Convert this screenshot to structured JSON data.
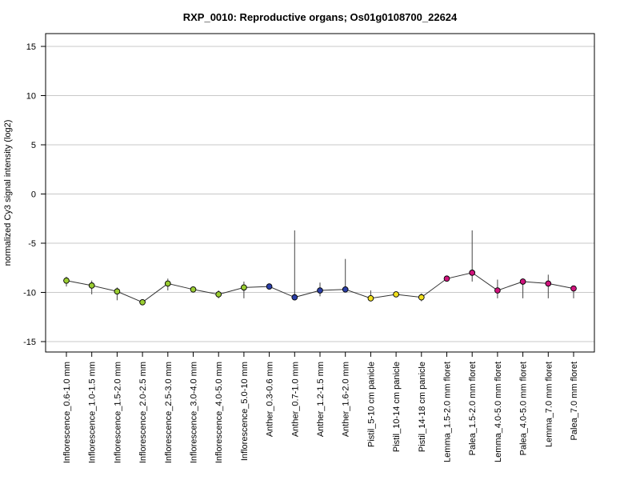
{
  "chart_data": {
    "type": "line",
    "title": "RXP_0010: Reproductive organs; Os01g0108700_22624",
    "xlabel": "",
    "ylabel": "normalized Cy3 signal intensity (log2)",
    "ylim": [
      -16.2,
      16.2
    ],
    "yticks": [
      -15,
      -10,
      -5,
      0,
      5,
      10,
      15
    ],
    "grid": true,
    "categories": [
      "Inflorescence_0.6-1.0 mm",
      "Inflorescence_1.0-1.5 mm",
      "Inflorescence_1.5-2.0 mm",
      "Inflorescence_2.0-2.5 mm",
      "Inflorescence_2.5-3.0 mm",
      "Inflorescence_3.0-4.0 mm",
      "Inflorescence_4.0-5.0 mm",
      "Inflorescence_5.0-10 mm",
      "Anther_0.3-0.6 mm",
      "Anther_0.7-1.0 mm",
      "Anther_1.2-1.5 mm",
      "Anther_1.6-2.0 mm",
      "Pistil_5-10 cm panicle",
      "Pistil_10-14 cm panicle",
      "Pistil_14-18 cm panicle",
      "Lemma_1.5-2.0 mm floret",
      "Palea_1.5-2.0 mm floret",
      "Lemma_4.0-5.0 mm floret",
      "Palea_4.0-5.0 mm floret",
      "Lemma_7.0 mm floret",
      "Palea_7.0 mm floret"
    ],
    "series": [
      {
        "values": [
          -8.8,
          -9.3,
          -9.9,
          -11.0,
          -9.1,
          -9.7,
          -10.2,
          -9.5,
          -9.4,
          -10.5,
          -9.8,
          -9.7,
          -10.6,
          -10.2,
          -10.5,
          -8.6,
          -8.0,
          -9.8,
          -8.9,
          -9.1,
          -9.6
        ],
        "err_low": [
          -9.4,
          -10.2,
          -10.8,
          -11.2,
          -9.8,
          -9.9,
          -10.6,
          -10.6,
          -9.6,
          -10.5,
          -10.4,
          -9.8,
          -10.9,
          -10.4,
          -10.9,
          -8.8,
          -8.9,
          -10.6,
          -10.6,
          -10.6,
          -10.6
        ],
        "err_high": [
          -8.4,
          -8.8,
          -9.5,
          -10.9,
          -8.6,
          -9.6,
          -9.8,
          -8.9,
          -9.2,
          -3.7,
          -9.0,
          -6.6,
          -9.8,
          -10.0,
          -10.1,
          -8.3,
          -3.7,
          -8.7,
          -8.6,
          -8.2,
          -9.4
        ],
        "colors": [
          "#9ACD32",
          "#9ACD32",
          "#9ACD32",
          "#9ACD32",
          "#9ACD32",
          "#9ACD32",
          "#9ACD32",
          "#9ACD32",
          "#2B3FA8",
          "#2B3FA8",
          "#2B3FA8",
          "#2B3FA8",
          "#F2E01E",
          "#F2E01E",
          "#F2E01E",
          "#D0147D",
          "#D0147D",
          "#D0147D",
          "#D0147D",
          "#D0147D",
          "#D0147D"
        ]
      }
    ]
  }
}
